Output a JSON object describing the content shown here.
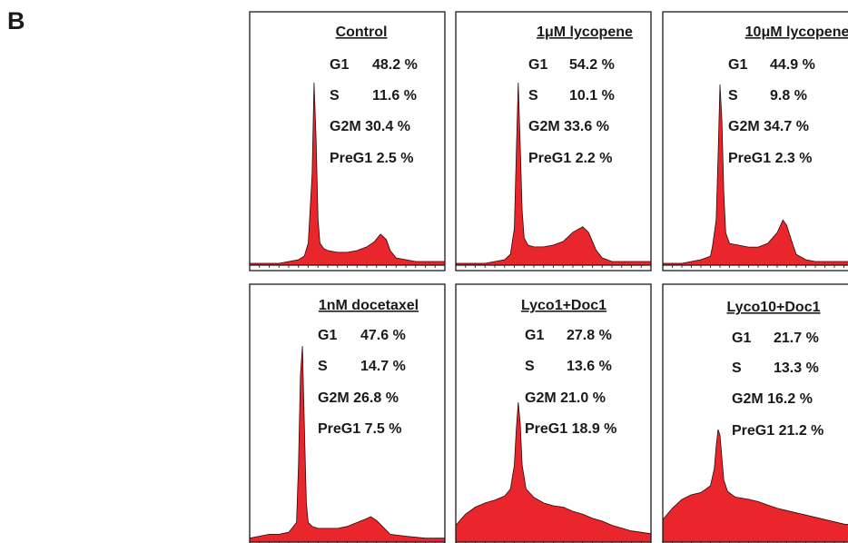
{
  "panel_label": "B",
  "chart_data": [
    {
      "type": "area",
      "title": "Control",
      "stats": [
        "G1",
        "48.2 %",
        "S",
        "11.6 %",
        "G2M 30.4 %",
        "PreG1 2.5 %"
      ],
      "fill_color": "#e8262b",
      "x": [
        0,
        5,
        10,
        15,
        20,
        25,
        28,
        30,
        32,
        33,
        34,
        35,
        36,
        38,
        40,
        45,
        50,
        55,
        60,
        64,
        67,
        70,
        72,
        75,
        80,
        85,
        90,
        95,
        100
      ],
      "y": [
        1,
        1,
        1,
        1,
        2,
        3,
        5,
        12,
        50,
        100,
        70,
        25,
        12,
        9,
        8,
        7,
        7,
        8,
        10,
        13,
        17,
        14,
        8,
        4,
        3,
        2,
        2,
        2,
        2
      ]
    },
    {
      "type": "area",
      "title": "1μM lycopene",
      "stats": [
        "G1",
        "54.2 %",
        "S",
        "10.1 %",
        "G2M 33.6 %",
        "PreG1 2.2 %"
      ],
      "fill_color": "#e8262b",
      "x": [
        0,
        5,
        10,
        15,
        20,
        25,
        28,
        30,
        31,
        32,
        33,
        34,
        35,
        37,
        40,
        45,
        50,
        55,
        60,
        65,
        68,
        72,
        75,
        80,
        85,
        90,
        100
      ],
      "y": [
        1,
        1,
        1,
        1,
        2,
        3,
        6,
        20,
        60,
        100,
        65,
        30,
        15,
        11,
        10,
        10,
        11,
        13,
        18,
        21,
        18,
        8,
        4,
        2,
        2,
        2,
        2
      ]
    },
    {
      "type": "area",
      "title": "10μM lycopene",
      "stats": [
        "G1",
        "44.9 %",
        "S",
        "9.8 %",
        "G2M 34.7 %",
        "PreG1 2.3 %"
      ],
      "fill_color": "#e8262b",
      "x": [
        0,
        5,
        10,
        15,
        20,
        25,
        26,
        28,
        29,
        30,
        31,
        32,
        33,
        35,
        40,
        45,
        50,
        55,
        60,
        63,
        65,
        68,
        70,
        75,
        80,
        90,
        100
      ],
      "y": [
        1,
        1,
        1,
        2,
        3,
        5,
        10,
        25,
        60,
        100,
        80,
        40,
        18,
        12,
        11,
        10,
        10,
        12,
        18,
        25,
        22,
        12,
        6,
        3,
        2,
        2,
        2
      ]
    },
    {
      "type": "area",
      "title": "1nM docetaxel",
      "stats": [
        "G1",
        "47.6 %",
        "S",
        "14.7 %",
        "G2M 26.8 %",
        "PreG1 7.5 %"
      ],
      "fill_color": "#e8262b",
      "x": [
        0,
        5,
        10,
        15,
        20,
        24,
        25,
        26,
        27,
        28,
        29,
        30,
        32,
        35,
        40,
        45,
        50,
        55,
        60,
        62,
        65,
        68,
        72,
        80,
        90,
        100
      ],
      "y": [
        2,
        3,
        4,
        4,
        5,
        10,
        40,
        85,
        100,
        60,
        20,
        10,
        8,
        7,
        7,
        7,
        8,
        10,
        12,
        13,
        11,
        8,
        4,
        3,
        2,
        2
      ]
    },
    {
      "type": "area",
      "title": "Lyco1+Doc1",
      "stats": [
        "G1",
        "27.8 %",
        "S",
        "13.6 %",
        "G2M 21.0 %",
        "PreG1 18.9 %"
      ],
      "fill_color": "#e8262b",
      "x": [
        0,
        5,
        10,
        15,
        20,
        25,
        28,
        30,
        31,
        32,
        33,
        34,
        36,
        40,
        45,
        50,
        55,
        60,
        65,
        70,
        75,
        80,
        85,
        90,
        95,
        100
      ],
      "y": [
        12,
        20,
        25,
        28,
        30,
        33,
        38,
        55,
        80,
        100,
        85,
        55,
        38,
        32,
        28,
        26,
        25,
        22,
        20,
        17,
        15,
        12,
        10,
        8,
        7,
        6
      ]
    },
    {
      "type": "area",
      "title": "Lyco10+Doc1",
      "stats": [
        "G1",
        "21.7 %",
        "S",
        "13.3 %",
        "G2M 16.2 %",
        "PreG1 21.2 %"
      ],
      "fill_color": "#e8262b",
      "x": [
        0,
        5,
        10,
        15,
        20,
        25,
        27,
        28,
        29,
        30,
        31,
        32,
        34,
        38,
        45,
        50,
        55,
        60,
        65,
        70,
        75,
        80,
        85,
        90,
        95,
        100
      ],
      "y": [
        20,
        30,
        38,
        42,
        44,
        50,
        65,
        85,
        100,
        95,
        75,
        55,
        45,
        40,
        38,
        36,
        33,
        30,
        28,
        26,
        24,
        22,
        20,
        18,
        16,
        15
      ]
    }
  ]
}
